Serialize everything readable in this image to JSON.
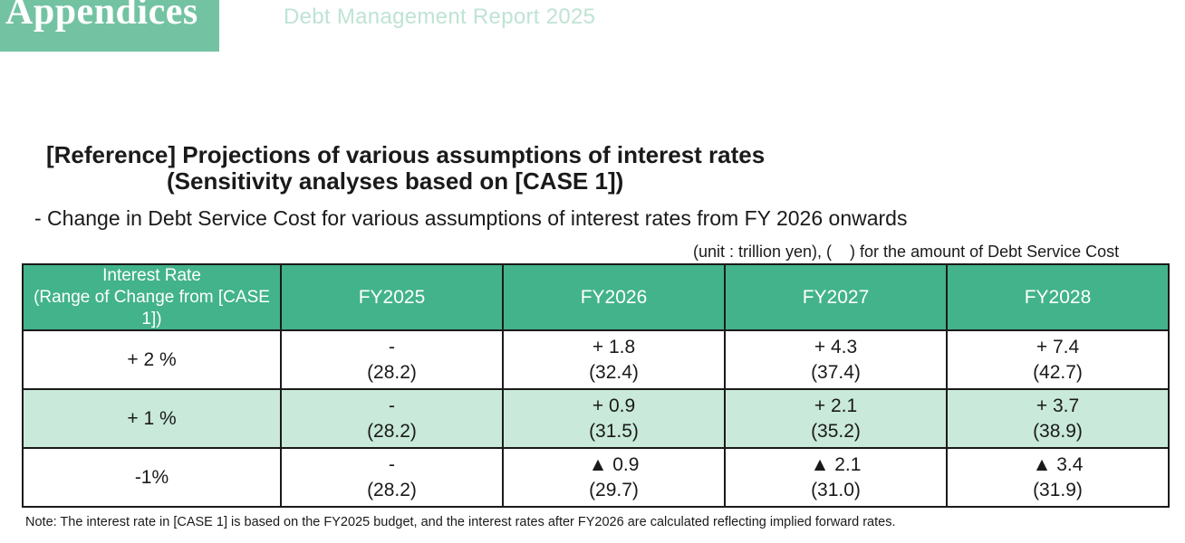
{
  "header": {
    "tab_label": "Appendices",
    "report_title": "Debt Management Report 2025"
  },
  "heading": {
    "line1": "[Reference] Projections of various assumptions of interest rates",
    "line2": "(Sensitivity analyses based on [CASE 1])",
    "subheading": "- Change in Debt Service Cost for various assumptions of interest rates from FY 2026 onwards",
    "unit_note": "(unit : trillion yen), (    ) for the amount of Debt Service Cost"
  },
  "table": {
    "header": {
      "rate_line1": "Interest Rate",
      "rate_line2": "(Range of Change from [CASE 1])",
      "fy2025": "FY2025",
      "fy2026": "FY2026",
      "fy2027": "FY2027",
      "fy2028": "FY2028"
    },
    "rows": [
      {
        "rate": "+ 2 %",
        "fy2025": {
          "change": "-",
          "amount": "(28.2)"
        },
        "fy2026": {
          "change": "+ 1.8",
          "amount": "(32.4)"
        },
        "fy2027": {
          "change": "+ 4.3",
          "amount": "(37.4)"
        },
        "fy2028": {
          "change": "+ 7.4",
          "amount": "(42.7)"
        }
      },
      {
        "rate": "+ 1 %",
        "fy2025": {
          "change": "-",
          "amount": "(28.2)"
        },
        "fy2026": {
          "change": "+ 0.9",
          "amount": "(31.5)"
        },
        "fy2027": {
          "change": "+ 2.1",
          "amount": "(35.2)"
        },
        "fy2028": {
          "change": "+ 3.7",
          "amount": "(38.9)"
        }
      },
      {
        "rate": "-1%",
        "fy2025": {
          "change": "-",
          "amount": "(28.2)"
        },
        "fy2026": {
          "change": "▲ 0.9",
          "amount": "(29.7)"
        },
        "fy2027": {
          "change": "▲ 2.1",
          "amount": "(31.0)"
        },
        "fy2028": {
          "change": "▲ 3.4",
          "amount": "(31.9)"
        }
      }
    ]
  },
  "note": "Note: The interest rate in [CASE 1] is based on the FY2025 budget, and the interest rates after FY2026 are calculated reflecting implied forward rates.",
  "colors": {
    "tab_background": "#73c3a3",
    "report_title": "#bfe3d4",
    "table_header": "#42b38a",
    "shaded_row": "#c9e9da"
  }
}
